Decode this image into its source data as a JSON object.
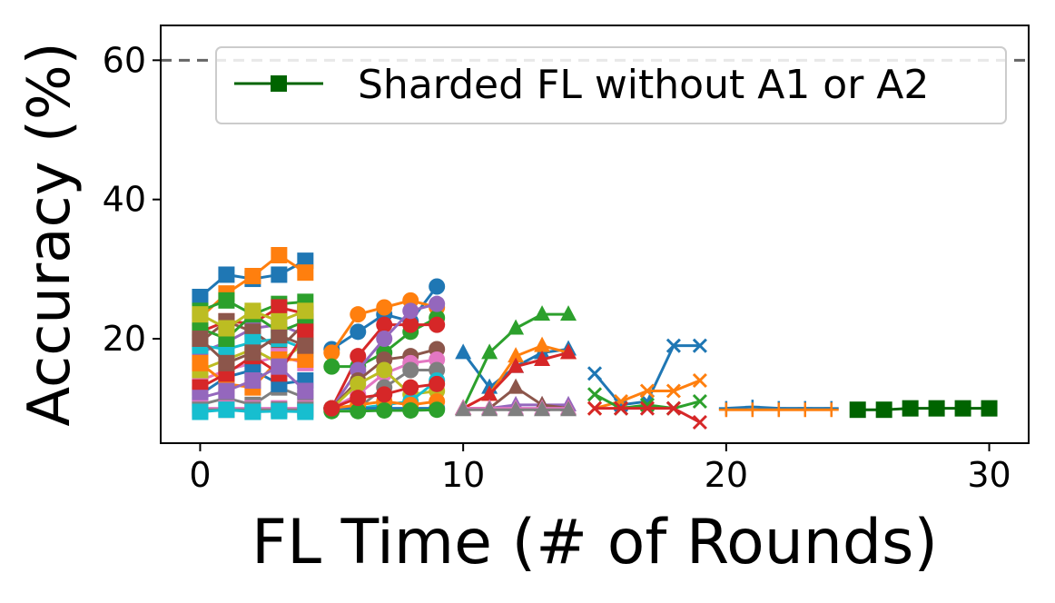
{
  "chart_data": {
    "type": "line",
    "title": "",
    "xlabel": "FL Time (# of Rounds)",
    "ylabel": "Accuracy (%)",
    "xlim": [
      -1.5,
      31.5
    ],
    "ylim": [
      5,
      65
    ],
    "xticks": [
      0,
      10,
      20,
      30
    ],
    "yticks": [
      20,
      40,
      60
    ],
    "grid": false,
    "legend": {
      "placement": "top-right",
      "entries": [
        "Sharded FL without A1 or A2"
      ]
    },
    "reference_line": {
      "y": 60,
      "style": "dashed",
      "color": "#666666"
    },
    "colors": [
      "#1f77b4",
      "#ff7f0e",
      "#2ca02c",
      "#d62728",
      "#9467bd",
      "#8c564b",
      "#e377c2",
      "#7f7f7f",
      "#bcbd22",
      "#17becf"
    ],
    "legend_color": "#006400",
    "groups": [
      {
        "marker": "square",
        "x": [
          0,
          1,
          2,
          3,
          4
        ],
        "series": [
          [
            26,
            29.2,
            28.6,
            29.2,
            31.2
          ],
          [
            23,
            26.5,
            29,
            32,
            29.5
          ],
          [
            24,
            25.5,
            23.5,
            25,
            25.3
          ],
          [
            21,
            22.5,
            22.2,
            24.5,
            23.6
          ],
          [
            18,
            19.5,
            21.5,
            22,
            20.5
          ],
          [
            19.5,
            22.5,
            21,
            18.5,
            22.3
          ],
          [
            14,
            15.5,
            16.5,
            17.5,
            16.5
          ],
          [
            10.5,
            11.5,
            10.5,
            13,
            11.5
          ],
          [
            15.5,
            17,
            18.5,
            16.5,
            19.5
          ],
          [
            19,
            18.5,
            19.5,
            20,
            18.5
          ],
          [
            12,
            14.5,
            15.5,
            13.5,
            14
          ],
          [
            16.5,
            13.5,
            13,
            17,
            17
          ],
          [
            21.5,
            20,
            23.5,
            21,
            22.5
          ],
          [
            13,
            15,
            17.5,
            15,
            21
          ],
          [
            11.5,
            12.5,
            14,
            16,
            12.5
          ],
          [
            20,
            16.5,
            18,
            20.5,
            19
          ],
          [
            10,
            10,
            10,
            10,
            10
          ],
          [
            9.8,
            9.8,
            9.8,
            9.8,
            9.8
          ],
          [
            23.5,
            21.5,
            24,
            22.5,
            24
          ],
          [
            9.5,
            9.8,
            9.5,
            9.6,
            9.5
          ]
        ]
      },
      {
        "marker": "circle",
        "x": [
          5,
          6,
          7,
          8,
          9
        ],
        "series": [
          [
            18.5,
            21,
            23.5,
            22.5,
            27.5
          ],
          [
            18,
            23.5,
            24.5,
            25.5,
            24.5
          ],
          [
            16,
            16,
            18,
            21,
            23
          ],
          [
            10,
            17.5,
            22,
            22,
            22
          ],
          [
            10,
            15.5,
            20,
            24,
            25
          ],
          [
            10,
            14,
            17,
            17.5,
            18.5
          ],
          [
            10,
            12,
            15,
            16.5,
            17
          ],
          [
            10,
            10,
            13,
            15.5,
            15.5
          ],
          [
            10,
            13.5,
            15.5,
            12,
            12.5
          ],
          [
            10,
            10,
            10.5,
            11,
            14
          ],
          [
            10,
            10,
            10,
            10,
            10
          ],
          [
            10,
            10.5,
            11,
            10.5,
            11
          ],
          [
            9.6,
            9.6,
            9.7,
            9.7,
            9.8
          ],
          [
            10,
            11.5,
            12,
            13,
            13.5
          ]
        ]
      },
      {
        "marker": "triangle",
        "x": [
          10,
          11,
          12,
          13,
          14
        ],
        "series": [
          [
            18,
            13,
            16,
            18,
            18.5
          ],
          [
            10,
            12,
            17.5,
            19,
            18
          ],
          [
            10,
            18,
            21.5,
            23.5,
            23.5
          ],
          [
            10,
            12,
            16,
            17,
            18
          ],
          [
            10,
            10,
            10.5,
            10.5,
            10.5
          ],
          [
            10,
            10,
            13,
            10.5,
            10
          ],
          [
            10,
            10,
            10,
            10,
            10
          ],
          [
            9.8,
            9.8,
            9.8,
            9.8,
            9.8
          ]
        ]
      },
      {
        "marker": "x",
        "x": [
          15,
          16,
          17,
          18,
          19
        ],
        "series": [
          [
            15,
            10.5,
            11,
            19,
            19
          ],
          [
            10,
            11,
            12.5,
            12.5,
            14
          ],
          [
            12,
            10,
            10.5,
            10,
            11
          ],
          [
            10,
            10,
            10,
            10,
            8
          ]
        ]
      },
      {
        "marker": "plus",
        "x": [
          20,
          21,
          22,
          23,
          24
        ],
        "series": [
          [
            10,
            10.2,
            10,
            10,
            10
          ],
          [
            9.8,
            9.8,
            9.8,
            9.8,
            9.8
          ]
        ]
      }
    ],
    "legend_series": {
      "name": "Sharded FL without A1 or A2",
      "marker": "square",
      "x": [
        25,
        26,
        27,
        28,
        29,
        30
      ],
      "values": [
        9.8,
        9.8,
        10,
        10,
        10,
        10
      ]
    }
  }
}
